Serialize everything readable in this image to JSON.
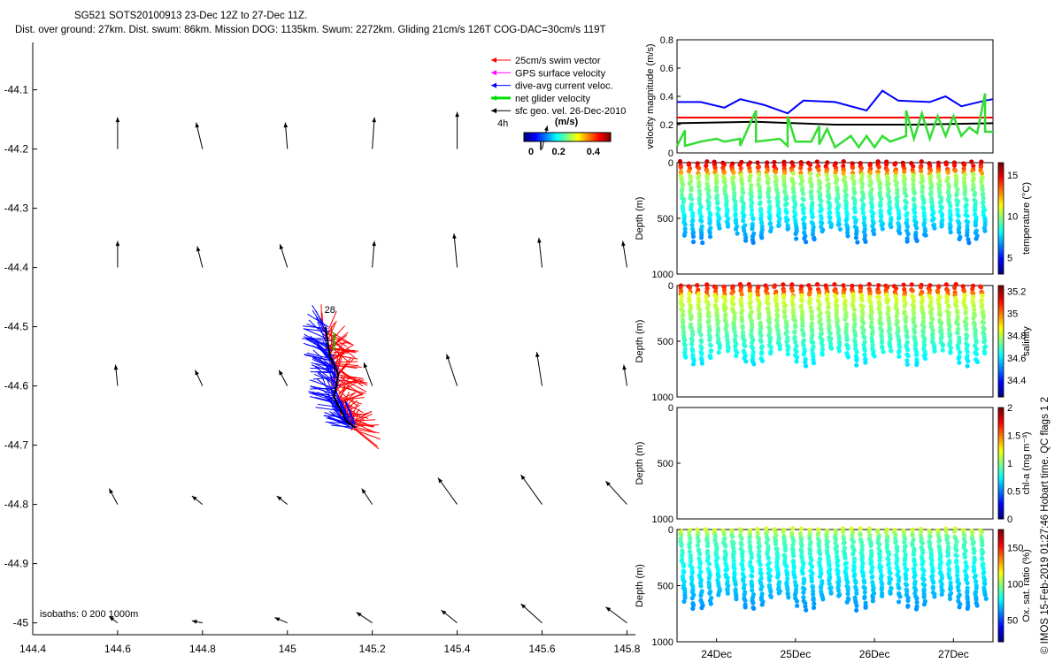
{
  "header": {
    "title_line1": "SG521 SOTS20100913 23-Dec 12Z to 27-Dec 11Z.",
    "title_line2": "Dist. over ground: 27km. Dist. swum: 86km. Mission DOG: 1135km. Swum: 2272km. Gliding 21cm/s 126T COG-DAC=30cm/s 119T"
  },
  "credit": "© IMOS 15-Feb-2019 01:27:46 Hobart time. QC flags 1  2",
  "chart_data": [
    {
      "type": "map",
      "xlim": [
        144.4,
        145.82
      ],
      "ylim": [
        -45.02,
        -44.02
      ],
      "xticks": [
        144.4,
        144.6,
        144.8,
        145,
        145.2,
        145.4,
        145.6,
        145.8
      ],
      "xtick_labels": [
        "144.4",
        "144.6",
        "144.8",
        "145",
        "145.2",
        "145.4",
        "145.6",
        "145.8"
      ],
      "yticks": [
        -44.1,
        -44.2,
        -44.3,
        -44.4,
        -44.5,
        -44.6,
        -44.7,
        -44.8,
        -44.9,
        -45
      ],
      "ytick_labels": [
        "-44.1",
        "-44.2",
        "-44.3",
        "-44.4",
        "-44.5",
        "-44.6",
        "-44.7",
        "-44.8",
        "-44.9",
        "-45"
      ],
      "legend": {
        "placement": "top-right",
        "entries": [
          {
            "label": "25cm/s swim vector",
            "color": "#ff0000"
          },
          {
            "label": "GPS surface velocity",
            "color": "#ff00ff"
          },
          {
            "label": "dive-avg current veloc.",
            "color": "#0000ff"
          },
          {
            "label": "net glider velocity",
            "color": "#00dd00"
          },
          {
            "label": "sfc geo. vel. 26-Dec-2010",
            "color": "#000000"
          }
        ]
      },
      "colorbar": {
        "label": "(m/s)",
        "ticks": [
          "0",
          "0.2",
          "0.4"
        ],
        "side_label": "4h"
      },
      "track_label": "28",
      "isobaths_label": "isobaths: 0   200   1000m",
      "track": [
        [
          145.09,
          -44.5
        ],
        [
          145.1,
          -44.55
        ],
        [
          145.12,
          -44.58
        ],
        [
          145.11,
          -44.62
        ],
        [
          145.14,
          -44.66
        ],
        [
          145.16,
          -44.67
        ]
      ],
      "geo_vectors": [
        {
          "lon": 144.6,
          "lat": -44.2,
          "u": 0.0,
          "v": 0.3
        },
        {
          "lon": 144.8,
          "lat": -44.2,
          "u": 0.06,
          "v": 0.25
        },
        {
          "lon": 145.0,
          "lat": -44.2,
          "u": 0.02,
          "v": 0.25
        },
        {
          "lon": 145.2,
          "lat": -44.2,
          "u": -0.02,
          "v": 0.3
        },
        {
          "lon": 145.4,
          "lat": -44.2,
          "u": 0.0,
          "v": 0.35
        },
        {
          "lon": 145.6,
          "lat": -44.2,
          "u": -0.05,
          "v": 0.22
        },
        {
          "lon": 144.6,
          "lat": -44.4,
          "u": 0.0,
          "v": 0.25
        },
        {
          "lon": 144.8,
          "lat": -44.4,
          "u": 0.05,
          "v": 0.2
        },
        {
          "lon": 145.0,
          "lat": -44.4,
          "u": 0.07,
          "v": 0.22
        },
        {
          "lon": 145.2,
          "lat": -44.4,
          "u": -0.02,
          "v": 0.25
        },
        {
          "lon": 145.4,
          "lat": -44.4,
          "u": 0.03,
          "v": 0.32
        },
        {
          "lon": 145.6,
          "lat": -44.4,
          "u": 0.03,
          "v": 0.28
        },
        {
          "lon": 145.8,
          "lat": -44.4,
          "u": 0.04,
          "v": 0.25
        },
        {
          "lon": 144.6,
          "lat": -44.6,
          "u": 0.02,
          "v": 0.2
        },
        {
          "lon": 144.8,
          "lat": -44.6,
          "u": 0.07,
          "v": 0.15
        },
        {
          "lon": 145.0,
          "lat": -44.6,
          "u": 0.08,
          "v": 0.15
        },
        {
          "lon": 145.2,
          "lat": -44.6,
          "u": 0.08,
          "v": 0.22
        },
        {
          "lon": 145.4,
          "lat": -44.6,
          "u": 0.1,
          "v": 0.3
        },
        {
          "lon": 145.6,
          "lat": -44.6,
          "u": 0.05,
          "v": 0.32
        },
        {
          "lon": 145.8,
          "lat": -44.6,
          "u": 0.03,
          "v": 0.2
        },
        {
          "lon": 144.6,
          "lat": -44.8,
          "u": 0.08,
          "v": 0.15
        },
        {
          "lon": 144.8,
          "lat": -44.8,
          "u": 0.1,
          "v": 0.08
        },
        {
          "lon": 145.0,
          "lat": -44.8,
          "u": 0.1,
          "v": 0.08
        },
        {
          "lon": 145.2,
          "lat": -44.8,
          "u": 0.1,
          "v": 0.15
        },
        {
          "lon": 145.4,
          "lat": -44.8,
          "u": 0.18,
          "v": 0.25
        },
        {
          "lon": 145.6,
          "lat": -44.8,
          "u": 0.2,
          "v": 0.28
        },
        {
          "lon": 145.8,
          "lat": -44.8,
          "u": 0.2,
          "v": 0.22
        },
        {
          "lon": 144.6,
          "lat": -45.0,
          "u": 0.08,
          "v": 0.06
        },
        {
          "lon": 144.8,
          "lat": -45.0,
          "u": 0.1,
          "v": 0.02
        },
        {
          "lon": 145.0,
          "lat": -45.0,
          "u": 0.12,
          "v": 0.05
        },
        {
          "lon": 145.2,
          "lat": -45.0,
          "u": 0.15,
          "v": 0.1
        },
        {
          "lon": 145.4,
          "lat": -45.0,
          "u": 0.15,
          "v": 0.12
        },
        {
          "lon": 145.6,
          "lat": -45.0,
          "u": 0.2,
          "v": 0.18
        },
        {
          "lon": 145.8,
          "lat": -45.0,
          "u": 0.2,
          "v": 0.15
        }
      ]
    },
    {
      "type": "line",
      "ylabel": "velocity magnitude (m/s)",
      "ylim": [
        0,
        0.8
      ],
      "yticks": [
        0,
        0.2,
        0.4,
        0.6,
        0.8
      ],
      "ytick_labels": [
        "0",
        "0.2",
        "0.4",
        "0.6",
        "0.8"
      ],
      "xlim": [
        23.5,
        27.5
      ],
      "series": [
        {
          "color": "#ff0000",
          "points": [
            [
              23.5,
              0.25
            ],
            [
              27.5,
              0.25
            ]
          ]
        },
        {
          "color": "#000000",
          "points": [
            [
              23.5,
              0.21
            ],
            [
              24.5,
              0.22
            ],
            [
              25.5,
              0.2
            ],
            [
              26.5,
              0.2
            ],
            [
              27.5,
              0.21
            ]
          ]
        },
        {
          "color": "#0000ff",
          "points": [
            [
              23.5,
              0.36
            ],
            [
              23.8,
              0.36
            ],
            [
              24.1,
              0.32
            ],
            [
              24.3,
              0.38
            ],
            [
              24.6,
              0.34
            ],
            [
              24.9,
              0.28
            ],
            [
              25.1,
              0.37
            ],
            [
              25.5,
              0.36
            ],
            [
              25.9,
              0.3
            ],
            [
              26.1,
              0.44
            ],
            [
              26.3,
              0.37
            ],
            [
              26.7,
              0.36
            ],
            [
              26.9,
              0.4
            ],
            [
              27.1,
              0.33
            ],
            [
              27.4,
              0.37
            ],
            [
              27.5,
              0.38
            ]
          ]
        },
        {
          "color": "#33dd33",
          "points": [
            [
              23.5,
              0.05
            ],
            [
              23.6,
              0.16
            ],
            [
              23.6,
              0.05
            ],
            [
              23.8,
              0.08
            ],
            [
              24.0,
              0.1
            ],
            [
              24.1,
              0.08
            ],
            [
              24.3,
              0.1
            ],
            [
              24.3,
              0.05
            ],
            [
              24.5,
              0.3
            ],
            [
              24.5,
              0.08
            ],
            [
              24.8,
              0.1
            ],
            [
              24.9,
              0.05
            ],
            [
              24.9,
              0.26
            ],
            [
              25.0,
              0.08
            ],
            [
              25.2,
              0.08
            ],
            [
              25.3,
              0.19
            ],
            [
              25.3,
              0.06
            ],
            [
              25.4,
              0.17
            ],
            [
              25.5,
              0.04
            ],
            [
              25.7,
              0.12
            ],
            [
              25.8,
              0.04
            ],
            [
              25.9,
              0.12
            ],
            [
              26.0,
              0.04
            ],
            [
              26.1,
              0.12
            ],
            [
              26.2,
              0.08
            ],
            [
              26.4,
              0.12
            ],
            [
              26.4,
              0.3
            ],
            [
              26.5,
              0.1
            ],
            [
              26.6,
              0.28
            ],
            [
              26.7,
              0.1
            ],
            [
              26.8,
              0.26
            ],
            [
              26.9,
              0.12
            ],
            [
              27.0,
              0.26
            ],
            [
              27.1,
              0.12
            ],
            [
              27.2,
              0.18
            ],
            [
              27.3,
              0.14
            ],
            [
              27.4,
              0.42
            ],
            [
              27.4,
              0.15
            ],
            [
              27.5,
              0.15
            ]
          ]
        }
      ]
    },
    {
      "type": "section",
      "variable": "temperature",
      "colorbar_label": "temperature (°C)",
      "clim": [
        3,
        16.5
      ],
      "colorbar_ticks": [
        5,
        10,
        15
      ],
      "colorbar_tick_labels": [
        "5",
        "10",
        "15"
      ],
      "surface_value": 15.5,
      "deep_value": 6.5,
      "dive_depth": 700
    },
    {
      "type": "section",
      "variable": "salinity",
      "colorbar_label": "salinity",
      "clim": [
        34.25,
        35.25
      ],
      "colorbar_ticks": [
        34.4,
        34.6,
        34.8,
        35,
        35.2
      ],
      "colorbar_tick_labels": [
        "34.4",
        "34.6",
        "34.8",
        "35",
        "35.2"
      ],
      "surface_value": 35.05,
      "deep_value": 34.6,
      "dive_depth": 700
    },
    {
      "type": "section",
      "variable": "chl-a",
      "colorbar_label": "chl-a (mg m⁻³)",
      "clim": [
        0,
        2
      ],
      "colorbar_ticks": [
        0,
        0.5,
        1,
        1.5,
        2
      ],
      "colorbar_tick_labels": [
        "0",
        "0.5",
        "1",
        "1.5",
        "2"
      ],
      "empty": true
    },
    {
      "type": "section",
      "variable": "oxygen",
      "colorbar_label": "Ox. sat. ratio (%)",
      "clim": [
        20,
        175
      ],
      "colorbar_ticks": [
        50,
        100,
        150
      ],
      "colorbar_tick_labels": [
        "50",
        "100",
        "150"
      ],
      "surface_value": 95,
      "deep_value": 62,
      "dive_depth": 700
    }
  ],
  "section_axes": {
    "ylabel": "Depth (m)",
    "ylim": [
      0,
      1000
    ],
    "yticks": [
      0,
      500,
      1000
    ],
    "ytick_labels": [
      "0",
      "500",
      "1000"
    ],
    "xlim": [
      23.5,
      27.5
    ],
    "xticks": [
      24,
      25,
      26,
      27
    ],
    "xtick_labels": [
      "24Dec",
      "25Dec",
      "26Dec",
      "27Dec"
    ]
  }
}
